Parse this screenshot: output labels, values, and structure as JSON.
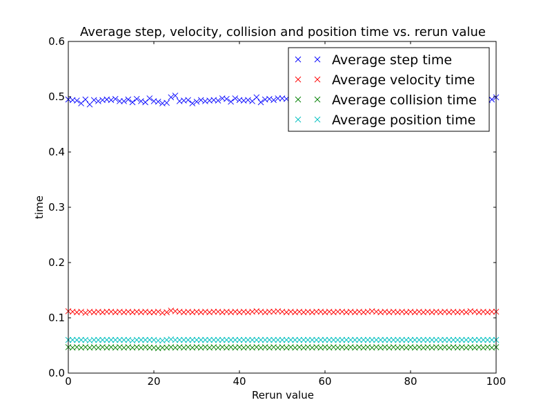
{
  "chart_data": {
    "type": "scatter",
    "title": "Average step, velocity, collision and position time vs. rerun value",
    "xlabel": "Rerun value",
    "ylabel": "time",
    "xlim": [
      0,
      100
    ],
    "ylim": [
      0.0,
      0.6
    ],
    "x_ticks": [
      0,
      20,
      40,
      60,
      80,
      100
    ],
    "x_tick_labels": [
      "0",
      "20",
      "40",
      "60",
      "80",
      "100"
    ],
    "y_ticks": [
      0.0,
      0.1,
      0.2,
      0.3,
      0.4,
      0.5,
      0.6
    ],
    "y_tick_labels": [
      "0.0",
      "0.1",
      "0.2",
      "0.3",
      "0.4",
      "0.5",
      "0.6"
    ],
    "grid": false,
    "legend_position": "upper right",
    "marker": "x",
    "x": [
      0,
      1,
      2,
      3,
      4,
      5,
      6,
      7,
      8,
      9,
      10,
      11,
      12,
      13,
      14,
      15,
      16,
      17,
      18,
      19,
      20,
      21,
      22,
      23,
      24,
      25,
      26,
      27,
      28,
      29,
      30,
      31,
      32,
      33,
      34,
      35,
      36,
      37,
      38,
      39,
      40,
      41,
      42,
      43,
      44,
      45,
      46,
      47,
      48,
      49,
      50,
      51,
      52,
      53,
      54,
      55,
      56,
      57,
      58,
      59,
      60,
      61,
      62,
      63,
      64,
      65,
      66,
      67,
      68,
      69,
      70,
      71,
      72,
      73,
      74,
      75,
      76,
      77,
      78,
      79,
      80,
      81,
      82,
      83,
      84,
      85,
      86,
      87,
      88,
      89,
      90,
      91,
      92,
      93,
      94,
      95,
      96,
      97,
      98,
      99,
      100
    ],
    "series": [
      {
        "name": "Average step time",
        "color": "#0000ff",
        "values": [
          0.495,
          0.494,
          0.493,
          0.488,
          0.495,
          0.486,
          0.494,
          0.492,
          0.494,
          0.495,
          0.494,
          0.496,
          0.492,
          0.492,
          0.495,
          0.49,
          0.496,
          0.492,
          0.49,
          0.497,
          0.492,
          0.491,
          0.488,
          0.489,
          0.499,
          0.502,
          0.492,
          0.493,
          0.494,
          0.488,
          0.491,
          0.494,
          0.492,
          0.493,
          0.494,
          0.493,
          0.497,
          0.496,
          0.491,
          0.497,
          0.494,
          0.493,
          0.494,
          0.492,
          0.499,
          0.49,
          0.495,
          0.496,
          0.494,
          0.497,
          0.497,
          0.496,
          0.495,
          0.496,
          0.497,
          0.495,
          0.494,
          0.496,
          0.495,
          0.497,
          0.496,
          0.494,
          0.495,
          0.496,
          0.497,
          0.495,
          0.494,
          0.495,
          0.496,
          0.497,
          0.495,
          0.496,
          0.494,
          0.495,
          0.496,
          0.497,
          0.495,
          0.494,
          0.496,
          0.495,
          0.497,
          0.496,
          0.494,
          0.495,
          0.496,
          0.497,
          0.495,
          0.496,
          0.494,
          0.495,
          0.496,
          0.497,
          0.495,
          0.494,
          0.496,
          0.495,
          0.497,
          0.496,
          0.494,
          0.495,
          0.499
        ]
      },
      {
        "name": "Average velocity time",
        "color": "#ff0000",
        "values": [
          0.112,
          0.111,
          0.11,
          0.111,
          0.109,
          0.111,
          0.11,
          0.111,
          0.11,
          0.111,
          0.111,
          0.11,
          0.111,
          0.11,
          0.111,
          0.11,
          0.111,
          0.11,
          0.111,
          0.11,
          0.11,
          0.111,
          0.109,
          0.11,
          0.113,
          0.112,
          0.111,
          0.11,
          0.111,
          0.11,
          0.111,
          0.11,
          0.111,
          0.11,
          0.111,
          0.111,
          0.11,
          0.111,
          0.11,
          0.111,
          0.11,
          0.111,
          0.11,
          0.111,
          0.112,
          0.111,
          0.11,
          0.111,
          0.111,
          0.112,
          0.111,
          0.11,
          0.111,
          0.11,
          0.111,
          0.11,
          0.111,
          0.11,
          0.111,
          0.111,
          0.11,
          0.111,
          0.11,
          0.111,
          0.111,
          0.11,
          0.111,
          0.11,
          0.111,
          0.11,
          0.111,
          0.112,
          0.111,
          0.11,
          0.111,
          0.11,
          0.111,
          0.11,
          0.111,
          0.11,
          0.111,
          0.11,
          0.111,
          0.11,
          0.111,
          0.11,
          0.111,
          0.11,
          0.111,
          0.11,
          0.111,
          0.11,
          0.111,
          0.11,
          0.112,
          0.111,
          0.11,
          0.111,
          0.11,
          0.111,
          0.111
        ]
      },
      {
        "name": "Average collision time",
        "color": "#008000",
        "values": [
          0.047,
          0.046,
          0.047,
          0.046,
          0.047,
          0.046,
          0.047,
          0.046,
          0.047,
          0.046,
          0.047,
          0.046,
          0.047,
          0.046,
          0.047,
          0.046,
          0.047,
          0.046,
          0.047,
          0.046,
          0.046,
          0.045,
          0.046,
          0.046,
          0.047,
          0.046,
          0.047,
          0.046,
          0.047,
          0.046,
          0.047,
          0.046,
          0.047,
          0.046,
          0.047,
          0.046,
          0.047,
          0.046,
          0.047,
          0.046,
          0.047,
          0.046,
          0.047,
          0.046,
          0.047,
          0.046,
          0.047,
          0.046,
          0.047,
          0.046,
          0.047,
          0.046,
          0.047,
          0.046,
          0.047,
          0.046,
          0.047,
          0.046,
          0.047,
          0.046,
          0.047,
          0.046,
          0.047,
          0.046,
          0.047,
          0.046,
          0.047,
          0.046,
          0.047,
          0.046,
          0.047,
          0.046,
          0.047,
          0.046,
          0.047,
          0.046,
          0.047,
          0.046,
          0.047,
          0.046,
          0.047,
          0.046,
          0.047,
          0.046,
          0.047,
          0.046,
          0.047,
          0.046,
          0.047,
          0.046,
          0.047,
          0.046,
          0.047,
          0.046,
          0.047,
          0.046,
          0.047,
          0.046,
          0.047,
          0.046,
          0.047
        ]
      },
      {
        "name": "Average position time",
        "color": "#00bfbf",
        "values": [
          0.06,
          0.06,
          0.06,
          0.06,
          0.06,
          0.059,
          0.06,
          0.06,
          0.06,
          0.06,
          0.06,
          0.06,
          0.06,
          0.06,
          0.06,
          0.059,
          0.06,
          0.06,
          0.06,
          0.06,
          0.06,
          0.059,
          0.059,
          0.06,
          0.061,
          0.06,
          0.06,
          0.06,
          0.06,
          0.06,
          0.06,
          0.06,
          0.06,
          0.06,
          0.06,
          0.06,
          0.06,
          0.06,
          0.06,
          0.06,
          0.06,
          0.06,
          0.06,
          0.06,
          0.06,
          0.06,
          0.06,
          0.06,
          0.06,
          0.06,
          0.06,
          0.06,
          0.06,
          0.06,
          0.06,
          0.06,
          0.06,
          0.06,
          0.06,
          0.06,
          0.06,
          0.06,
          0.06,
          0.06,
          0.06,
          0.06,
          0.06,
          0.06,
          0.06,
          0.06,
          0.06,
          0.06,
          0.06,
          0.06,
          0.06,
          0.06,
          0.06,
          0.06,
          0.06,
          0.06,
          0.06,
          0.06,
          0.06,
          0.06,
          0.06,
          0.06,
          0.06,
          0.06,
          0.06,
          0.06,
          0.06,
          0.06,
          0.06,
          0.06,
          0.06,
          0.06,
          0.06,
          0.06,
          0.06,
          0.06,
          0.06
        ]
      }
    ]
  }
}
